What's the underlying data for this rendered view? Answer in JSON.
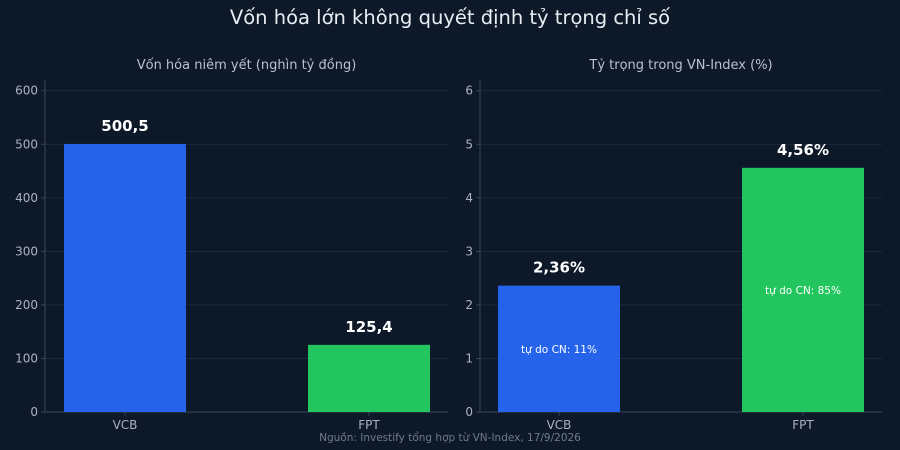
{
  "title": "Vốn hóa lớn không quyết định tỷ trọng chỉ số",
  "source": "Nguồn: Investify tổng hợp từ VN-Index, 17/9/2026",
  "chart_data": [
    {
      "type": "bar",
      "title": "Vốn hóa niêm yết (nghìn tỷ đồng)",
      "categories": [
        "VCB",
        "FPT"
      ],
      "values": [
        500.5,
        125.4
      ],
      "value_labels": [
        "500,5",
        "125,4"
      ],
      "colors": [
        "#2563eb",
        "#22c55e"
      ],
      "ylim": [
        0,
        620
      ],
      "yticks": [
        0,
        100,
        200,
        300,
        400,
        500,
        600
      ],
      "grid": true
    },
    {
      "type": "bar",
      "title": "Tỷ trọng trong VN-Index (%)",
      "categories": [
        "VCB",
        "FPT"
      ],
      "values": [
        2.36,
        4.56
      ],
      "value_labels": [
        "2,36%",
        "4,56%"
      ],
      "inner_labels": [
        "tự do CN: 11%",
        "tự do CN: 85%"
      ],
      "colors": [
        "#2563eb",
        "#22c55e"
      ],
      "ylim": [
        0,
        6.2
      ],
      "yticks": [
        0,
        1,
        2,
        3,
        4,
        5,
        6
      ],
      "grid": true
    }
  ]
}
